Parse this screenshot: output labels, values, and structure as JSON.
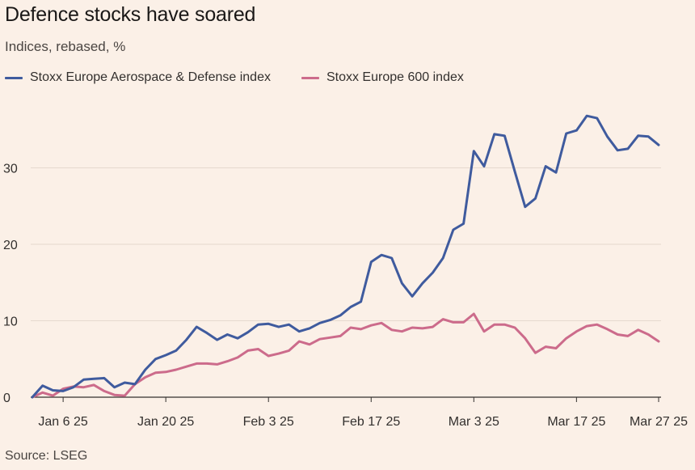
{
  "header": {
    "title": "Defence stocks have soared",
    "subtitle": "Indices, rebased, %"
  },
  "footer": {
    "source": "Source: LSEG"
  },
  "colors": {
    "background": "#fbf0e7",
    "aerospace": "#3f5b9e",
    "stoxx600": "#cc6b8b"
  },
  "chart_data": {
    "type": "line",
    "title": "Defence stocks have soared",
    "subtitle": "Indices, rebased, %",
    "xlabel": "",
    "ylabel": "",
    "ylim": [
      0,
      37
    ],
    "yticks": [
      0,
      10,
      20,
      30
    ],
    "xticks": [
      {
        "label": "Jan 6 25",
        "index": 3
      },
      {
        "label": "Jan 20 25",
        "index": 13
      },
      {
        "label": "Feb 3 25",
        "index": 23
      },
      {
        "label": "Feb 17 25",
        "index": 33
      },
      {
        "label": "Mar 3 25",
        "index": 43
      },
      {
        "label": "Mar 17 25",
        "index": 53
      },
      {
        "label": "Mar 27 25",
        "index": 61
      }
    ],
    "grid": true,
    "legend": "top-left",
    "x_count": 62,
    "series": [
      {
        "name": "Stoxx Europe Aerospace & Defense index",
        "color": "#3f5b9e",
        "values": [
          0,
          1.5,
          0.9,
          0.8,
          1.3,
          2.3,
          2.4,
          2.5,
          1.3,
          1.9,
          1.7,
          3.6,
          5.0,
          5.5,
          6.1,
          7.5,
          9.2,
          8.4,
          7.5,
          8.2,
          7.7,
          8.5,
          9.5,
          9.6,
          9.2,
          9.5,
          8.6,
          9.0,
          9.7,
          10.1,
          10.7,
          11.8,
          12.5,
          17.7,
          18.6,
          18.2,
          14.9,
          13.2,
          14.9,
          16.3,
          18.2,
          21.9,
          22.7,
          32.2,
          30.2,
          34.4,
          34.2,
          29.5,
          24.9,
          26.0,
          30.2,
          29.4,
          34.5,
          34.9,
          36.8,
          36.5,
          34.1,
          32.3,
          32.5,
          34.2,
          34.1,
          33.0
        ]
      },
      {
        "name": "Stoxx Europe 600 index",
        "color": "#cc6b8b",
        "values": [
          0,
          0.6,
          0.2,
          1.1,
          1.4,
          1.3,
          1.6,
          0.8,
          0.3,
          0.2,
          1.7,
          2.6,
          3.2,
          3.3,
          3.6,
          4.0,
          4.4,
          4.4,
          4.3,
          4.7,
          5.2,
          6.1,
          6.3,
          5.4,
          5.7,
          6.1,
          7.3,
          6.9,
          7.6,
          7.8,
          8.0,
          9.1,
          8.9,
          9.4,
          9.7,
          8.8,
          8.6,
          9.1,
          9.0,
          9.2,
          10.2,
          9.8,
          9.8,
          10.9,
          8.6,
          9.5,
          9.5,
          9.1,
          7.7,
          5.8,
          6.6,
          6.4,
          7.7,
          8.6,
          9.3,
          9.5,
          8.9,
          8.2,
          8.0,
          8.8,
          8.2,
          7.3
        ]
      }
    ]
  }
}
